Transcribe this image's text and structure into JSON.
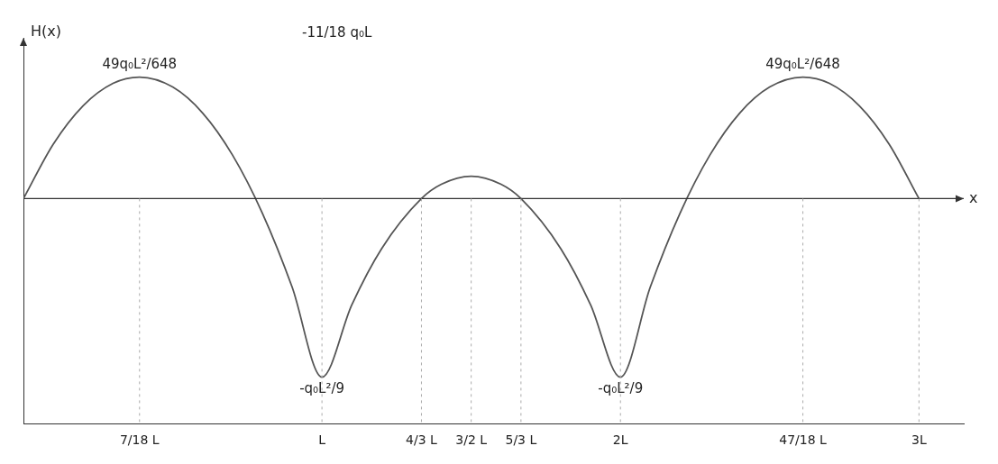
{
  "chart_data": {
    "type": "line",
    "xlabel": "x",
    "ylabel": "H(x)",
    "color": "#555555",
    "line_style": "solid",
    "marker": "none",
    "x": [
      0,
      0.1,
      0.2,
      0.3,
      0.3889,
      0.5,
      0.6,
      0.7,
      0.8,
      0.9,
      1.0,
      1.1,
      1.2,
      1.3333,
      1.4,
      1.5,
      1.6,
      1.6667,
      1.8,
      1.9,
      2.0,
      2.1,
      2.2,
      2.3,
      2.4,
      2.5,
      2.6111,
      2.7,
      2.8,
      2.9,
      3.0
    ],
    "values": [
      0,
      0.0339,
      0.0578,
      0.0717,
      0.0756,
      0.0694,
      0.0533,
      0.0272,
      -0.0089,
      -0.055,
      -0.1111,
      -0.0661,
      -0.0311,
      0,
      0.0089,
      0.0139,
      0.0089,
      0,
      -0.0311,
      -0.0661,
      -0.1111,
      -0.055,
      -0.0089,
      0.0272,
      0.0533,
      0.0694,
      0.0756,
      0.0717,
      0.0578,
      0.0339,
      0
    ],
    "xlim": [
      0,
      3.15
    ],
    "xticks": [
      {
        "value": 0.3889,
        "label": "7/18 L"
      },
      {
        "value": 1,
        "label": "L"
      },
      {
        "value": 1.3333,
        "label": "4/3 L"
      },
      {
        "value": 1.5,
        "label": "3/2 L"
      },
      {
        "value": 1.6667,
        "label": "5/3 L"
      },
      {
        "value": 2,
        "label": "2L"
      },
      {
        "value": 2.6111,
        "label": "47/18 L"
      },
      {
        "value": 3,
        "label": "3L"
      }
    ],
    "ylim": [
      -0.14,
      0.1
    ],
    "tick_labels": "x",
    "grid": false,
    "annotations": [
      {
        "text": "49q₀L²/648",
        "x": 0.3889,
        "y": 0.0756
      },
      {
        "text": "49q₀L²/648",
        "x": 2.6111,
        "y": 0.0756
      },
      {
        "text": "-q₀L²/9",
        "x": 1.0,
        "y": -0.1111
      },
      {
        "text": "-q₀L²/9",
        "x": 2.0,
        "y": -0.1111
      },
      {
        "text": "-11/18 q₀L",
        "x": 1.05,
        "y": 0.095
      }
    ]
  }
}
